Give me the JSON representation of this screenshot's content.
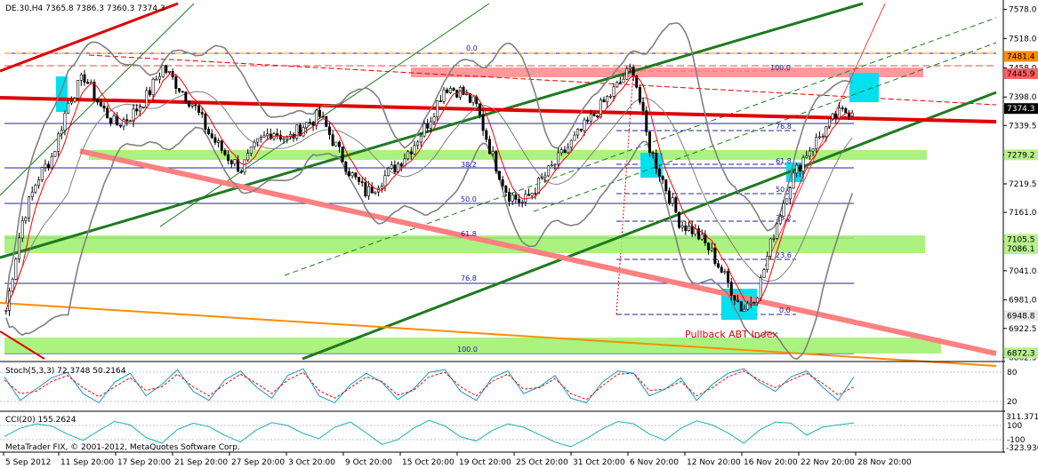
{
  "header": {
    "symbol_info": "DE.30,H4  7365.8 7386.3 7360.3 7374.3"
  },
  "footer": {
    "copyright": "MetaTrader FIX, © 2001-2012, MetaQuotes Software Corp."
  },
  "annotation": {
    "text": "Pullback ABT Index",
    "color": "#e00000"
  },
  "colors": {
    "background": "#ffffff",
    "grid": "#c0c0c0",
    "candles": "#000000",
    "bollinger": "#808080",
    "ma": "#ff0000",
    "trend_green": "#1e7a1e",
    "resistance_red": "#e00000",
    "pink_band": "#ff8888",
    "zone_green": "#9cf06a",
    "cyan_box": "#00e0f0",
    "fib_lines": "#2020aa",
    "orange": "#ff8c00",
    "stoch_main": "#1a9ac8",
    "stoch_signal": "#ff0000",
    "cci_line": "#20b0b0"
  },
  "chart_data": [
    {
      "type": "candlestick",
      "title": "DE.30,H4",
      "x_labels": [
        "5 Sep 2012",
        "11 Sep 20:00",
        "17 Sep 20:00",
        "21 Sep 20:00",
        "27 Sep 20:00",
        "3 Oct 20:00",
        "9 Oct 20:00",
        "15 Oct 20:00",
        "19 Oct 20:00",
        "25 Oct 20:00",
        "31 Oct 20:00",
        "6 Nov 20:00",
        "12 Nov 20:00",
        "16 Nov 20:00",
        "22 Nov 20:00",
        "28 Nov 20:00"
      ],
      "y_ticks": [
        7578.0,
        7518.0,
        7458.0,
        7398.0,
        7339.5,
        7279.5,
        7219.5,
        7161.0,
        7101.0,
        7041.0,
        6981.0,
        6922.5,
        6862.5
      ],
      "ylim": [
        6860,
        7590
      ],
      "price_tags": [
        {
          "value": 7481.4,
          "text": "7481.4",
          "bg": "#ff8c00"
        },
        {
          "value": 7445.9,
          "text": "7445.9",
          "bg": "#ff6060"
        },
        {
          "value": 7374.3,
          "text": "7374.3",
          "bg": "#000000"
        },
        {
          "value": 7279.2,
          "text": "7279.2",
          "bg": "#b8f08a"
        },
        {
          "value": 7105.5,
          "text": "7105.5",
          "bg": "#b8f08a"
        },
        {
          "value": 7086.1,
          "text": "7086.1",
          "bg": "#b8f08a"
        },
        {
          "value": 6948.8,
          "text": "6948.8",
          "bg": "#e8e8e8"
        },
        {
          "value": 6872.3,
          "text": "6872.3",
          "bg": "#b8f08a"
        }
      ],
      "fib_levels_1": [
        "0.0",
        "38.2",
        "50.0",
        "61.8",
        "76.8",
        "100.0"
      ],
      "fib_levels_2": [
        "100.0",
        "76.8",
        "61.8",
        "50.0",
        "38.2",
        "23.6",
        "0.0"
      ],
      "close_path": [
        6960,
        7140,
        7230,
        7280,
        7390,
        7440,
        7380,
        7340,
        7360,
        7400,
        7460,
        7420,
        7380,
        7320,
        7280,
        7250,
        7300,
        7330,
        7310,
        7340,
        7360,
        7300,
        7240,
        7200,
        7230,
        7260,
        7300,
        7350,
        7420,
        7410,
        7380,
        7280,
        7200,
        7180,
        7220,
        7260,
        7300,
        7340,
        7380,
        7420,
        7460,
        7300,
        7220,
        7140,
        7120,
        7080,
        7020,
        6960,
        7000,
        7120,
        7220,
        7280,
        7320,
        7360,
        7374
      ]
    },
    {
      "type": "line",
      "title": "Stoch(5,3,3) 72.3748 50.2164",
      "y_ticks": [
        "80",
        "20"
      ],
      "ylim": [
        0,
        100
      ],
      "main": [
        72,
        20,
        45,
        70,
        82,
        35,
        15,
        60,
        80,
        30,
        55,
        88,
        40,
        20,
        65,
        85,
        50,
        25,
        75,
        90,
        30,
        15,
        55,
        80,
        60,
        22,
        45,
        82,
        88,
        40,
        20,
        70,
        85,
        35,
        50,
        75,
        25,
        15,
        60,
        85,
        80,
        30,
        45,
        70,
        20,
        55,
        80,
        90,
        60,
        40,
        72,
        85,
        50,
        20,
        72
      ],
      "signal": [
        65,
        35,
        40,
        62,
        75,
        48,
        28,
        50,
        70,
        42,
        50,
        78,
        50,
        30,
        55,
        78,
        58,
        35,
        65,
        82,
        42,
        25,
        48,
        72,
        62,
        32,
        42,
        72,
        82,
        50,
        30,
        62,
        78,
        45,
        48,
        68,
        35,
        22,
        52,
        78,
        80,
        42,
        45,
        62,
        30,
        48,
        72,
        85,
        65,
        48,
        65,
        80,
        58,
        32,
        50
      ]
    },
    {
      "type": "line",
      "title": "CCI(20) 155.2624",
      "y_ticks": [
        "311.371",
        "100",
        "-100",
        "-323.930"
      ],
      "ylim": [
        -323.93,
        311.371
      ],
      "values": [
        -80,
        60,
        140,
        100,
        -40,
        -150,
        20,
        180,
        120,
        -100,
        -200,
        40,
        150,
        90,
        -60,
        -180,
        30,
        160,
        110,
        -30,
        -120,
        80,
        170,
        -20,
        -220,
        -140,
        60,
        200,
        100,
        -90,
        -160,
        20,
        140,
        80,
        -50,
        -180,
        -260,
        -120,
        50,
        180,
        140,
        -40,
        -150,
        60,
        190,
        120,
        -20,
        -200,
        30,
        170,
        150,
        -60,
        80,
        120,
        155
      ]
    }
  ]
}
